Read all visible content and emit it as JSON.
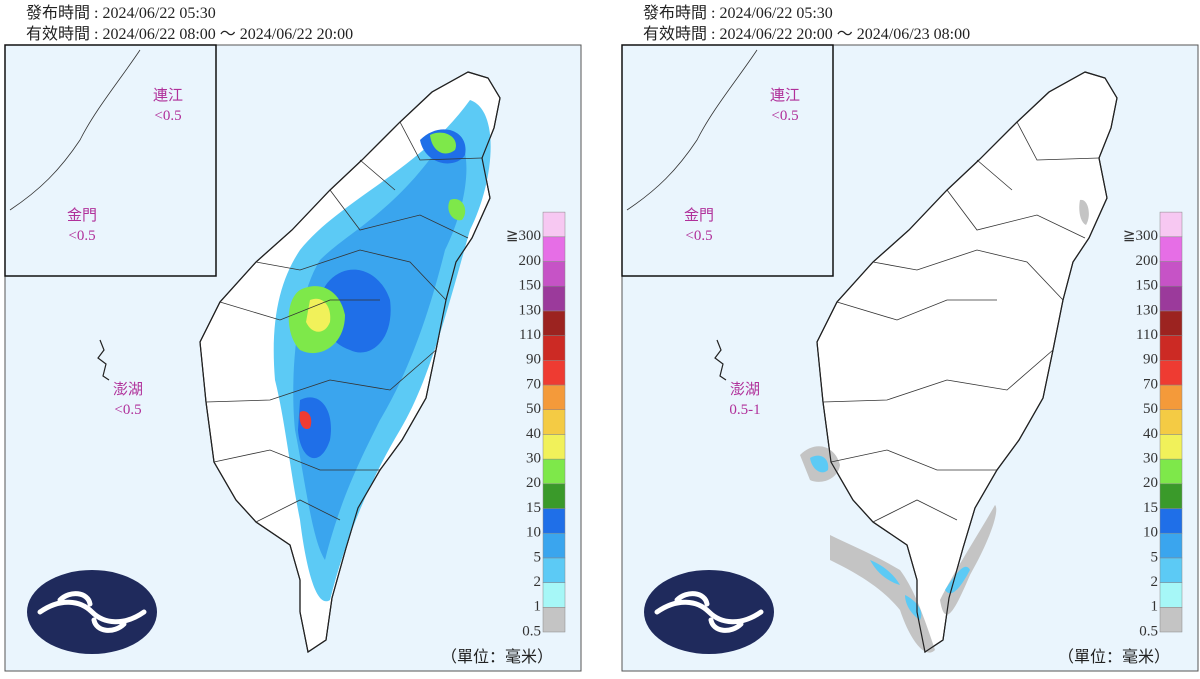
{
  "panels": [
    {
      "issued": "發布時間 : 2024/06/22 05:30",
      "valid": "有效時間 : 2024/06/22 08:00 ～ 2024/06/22 20:00",
      "islands": [
        {
          "name": "連江",
          "value": "<0.5"
        },
        {
          "name": "金門",
          "value": "<0.5"
        },
        {
          "name": "澎湖",
          "value": "<0.5"
        }
      ],
      "unit": "（單位：毫米）"
    },
    {
      "issued": "發布時間 : 2024/06/22 05:30",
      "valid": "有效時間 : 2024/06/22 20:00 ～ 2024/06/23 08:00",
      "islands": [
        {
          "name": "連江",
          "value": "<0.5"
        },
        {
          "name": "金門",
          "value": "<0.5"
        },
        {
          "name": "澎湖",
          "value": "0.5-1"
        }
      ],
      "unit": "（單位：毫米）"
    }
  ],
  "legend": {
    "labels": [
      "0.5",
      "1",
      "2",
      "5",
      "10",
      "15",
      "20",
      "30",
      "40",
      "50",
      "70",
      "90",
      "110",
      "130",
      "150",
      "200",
      "≧300"
    ],
    "colors": [
      "#c4c4c4",
      "#a6f7f7",
      "#5ccaf5",
      "#3aa5ee",
      "#1f6fe8",
      "#3a9a2a",
      "#7ee84a",
      "#f1f15a",
      "#f4cb44",
      "#f49a3a",
      "#ee3b32",
      "#cc2a24",
      "#9c2320",
      "#9b3a9b",
      "#c653c6",
      "#e66ee6",
      "#f7c8f2"
    ]
  }
}
